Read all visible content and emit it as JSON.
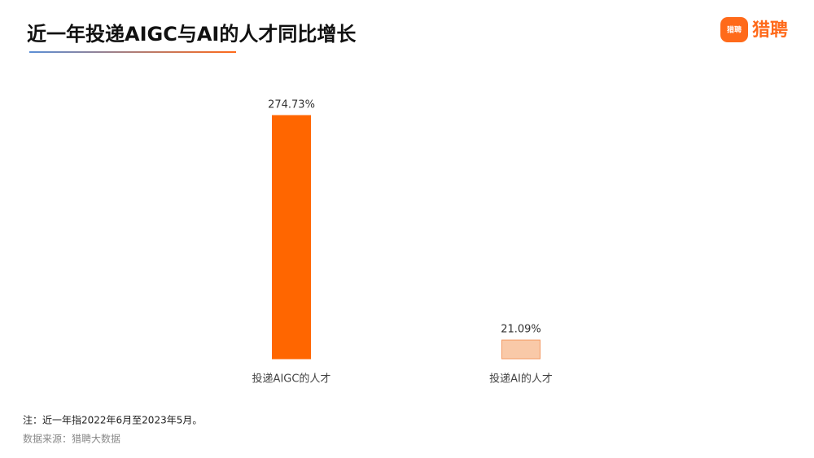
{
  "header": {
    "title": "近一年投递AIGC与AI的人才同比增长",
    "logo_icon_text": "猎聘",
    "logo_text": "猎聘"
  },
  "chart_data": {
    "type": "bar",
    "categories": [
      "投递AIGC的人才",
      "投递AI的人才"
    ],
    "values": [
      274.73,
      21.09
    ],
    "value_labels": [
      "274.73%",
      "21.09%"
    ],
    "colors": [
      "#ff6600",
      "#f9c9a8"
    ],
    "stroke_colors": [
      "#ff6600",
      "#f39a64"
    ]
  },
  "footer": {
    "note": "注：近一年指2022年6月至2023年5月。",
    "source": "数据来源：猎聘大数据"
  }
}
